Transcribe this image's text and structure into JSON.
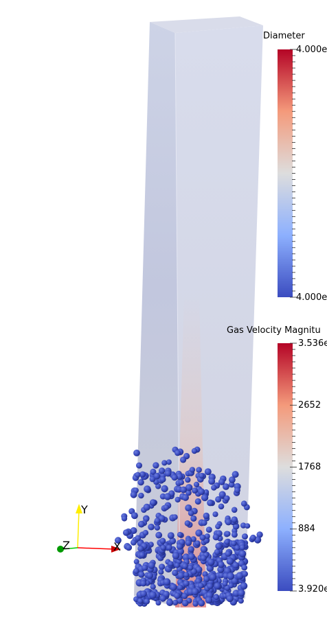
{
  "render_view": {
    "background": "#ffffff",
    "colormap": {
      "low": "#3b4cc0",
      "mid": "#dddddd",
      "high": "#b40426"
    },
    "diameter_bar": {
      "title": "Diameter",
      "max_label": "4.000e",
      "min_label": "4.000e"
    },
    "velocity_bar": {
      "title": "Gas Velocity Magnitu",
      "labels": [
        "3.536e",
        "2652",
        "1768",
        "884",
        "3.920e"
      ]
    },
    "orientation_axes": {
      "y_label": "Y",
      "z_label": "Z",
      "x_label": "X",
      "y_color": "#ffff00",
      "x_color": "#ff0000",
      "z_color": "#00cc00"
    }
  }
}
